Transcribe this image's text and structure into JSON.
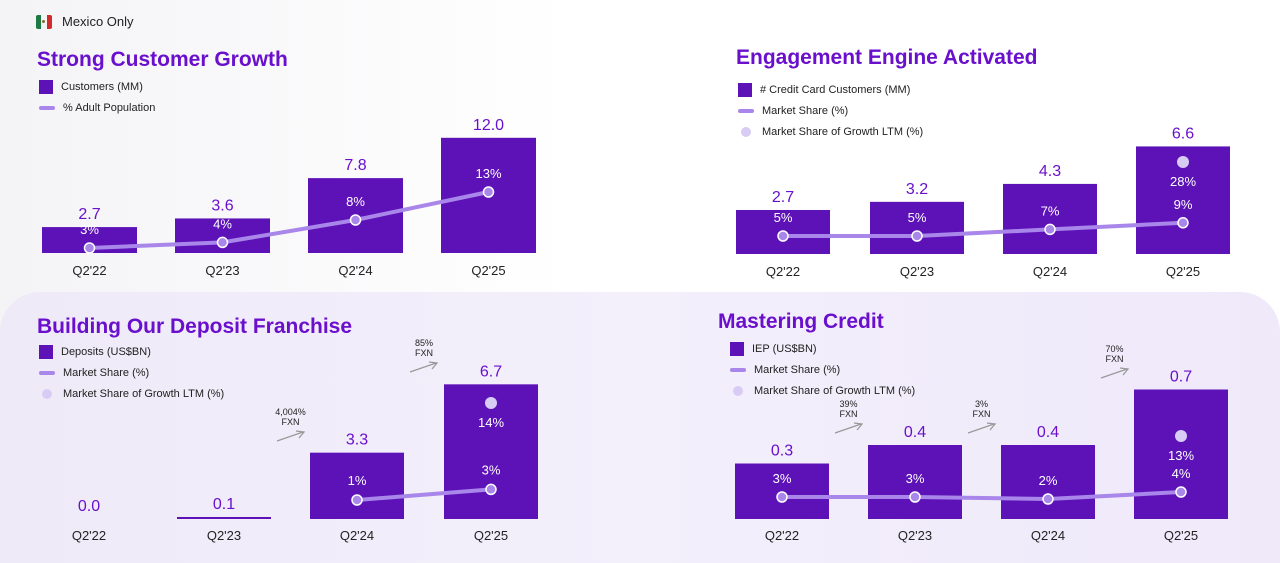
{
  "badge": {
    "icon": "mexico-flag-icon",
    "label": "Mexico Only"
  },
  "colors": {
    "bar": "#5d12b8",
    "bar_light": "#7a2ad6",
    "line": "#a886ea",
    "dot": "#d9ccf4",
    "title": "#6a10cc",
    "value": "#6a10cc",
    "share": "#ffffff"
  },
  "chart_data": [
    {
      "type": "bar",
      "title": "Strong Customer Growth",
      "categories": [
        "Q2'22",
        "Q2'23",
        "Q2'24",
        "Q2'25"
      ],
      "legend": [
        "Customers (MM)",
        "% Adult Population"
      ],
      "bar_values": [
        2.7,
        3.6,
        7.8,
        12.0
      ],
      "bar_labels": [
        "2.7",
        "3.6",
        "7.8",
        "12.0"
      ],
      "line_values": [
        3,
        4,
        8,
        13
      ],
      "line_labels": [
        "3%",
        "4%",
        "8%",
        "13%"
      ],
      "dot_values": [],
      "dot_labels": [],
      "fxn": []
    },
    {
      "type": "bar",
      "title": "Engagement Engine Activated",
      "categories": [
        "Q2'22",
        "Q2'23",
        "Q2'24",
        "Q2'25"
      ],
      "legend": [
        "# Credit Card Customers (MM)",
        "Market Share (%)",
        "Market Share of Growth LTM (%)"
      ],
      "bar_values": [
        2.7,
        3.2,
        4.3,
        6.6
      ],
      "bar_labels": [
        "2.7",
        "3.2",
        "4.3",
        "6.6"
      ],
      "line_values": [
        5,
        5,
        7,
        9
      ],
      "line_labels": [
        "5%",
        "5%",
        "7%",
        "9%"
      ],
      "dot_values": [
        null,
        null,
        null,
        28
      ],
      "dot_labels": [
        "",
        "",
        "",
        "28%"
      ],
      "fxn": []
    },
    {
      "type": "bar",
      "title": "Building Our Deposit Franchise",
      "categories": [
        "Q2'22",
        "Q2'23",
        "Q2'24",
        "Q2'25"
      ],
      "legend": [
        "Deposits (US$BN)",
        "Market Share (%)",
        "Market Share of Growth LTM (%)"
      ],
      "bar_values": [
        0.0,
        0.1,
        3.3,
        6.7
      ],
      "bar_labels": [
        "0.0",
        "0.1",
        "3.3",
        "6.7"
      ],
      "line_values": [
        null,
        null,
        1,
        3
      ],
      "line_labels": [
        "",
        "",
        "1%",
        "3%"
      ],
      "dot_values": [
        null,
        null,
        null,
        14
      ],
      "dot_labels": [
        "",
        "",
        "",
        "14%"
      ],
      "fxn": [
        {
          "between": [
            1,
            2
          ],
          "lines": [
            "4,004%",
            "FXN"
          ]
        },
        {
          "between": [
            2,
            3
          ],
          "lines": [
            "85%",
            "FXN"
          ]
        }
      ]
    },
    {
      "type": "bar",
      "title": "Mastering Credit",
      "categories": [
        "Q2'22",
        "Q2'23",
        "Q2'24",
        "Q2'25"
      ],
      "legend": [
        "IEP (US$BN)",
        "Market Share (%)",
        "Market Share of Growth LTM (%)"
      ],
      "bar_values": [
        0.3,
        0.4,
        0.4,
        0.7
      ],
      "bar_labels": [
        "0.3",
        "0.4",
        "0.4",
        "0.7"
      ],
      "line_values": [
        3,
        3,
        2,
        4
      ],
      "line_labels": [
        "3%",
        "3%",
        "2%",
        "4%"
      ],
      "dot_values": [
        null,
        null,
        null,
        13
      ],
      "dot_labels": [
        "",
        "",
        "",
        "13%"
      ],
      "fxn": [
        {
          "between": [
            0,
            1
          ],
          "lines": [
            "39%",
            "FXN"
          ]
        },
        {
          "between": [
            1,
            2
          ],
          "lines": [
            "3%",
            "FXN"
          ]
        },
        {
          "between": [
            2,
            3
          ],
          "lines": [
            "70%",
            "FXN"
          ]
        }
      ]
    }
  ]
}
